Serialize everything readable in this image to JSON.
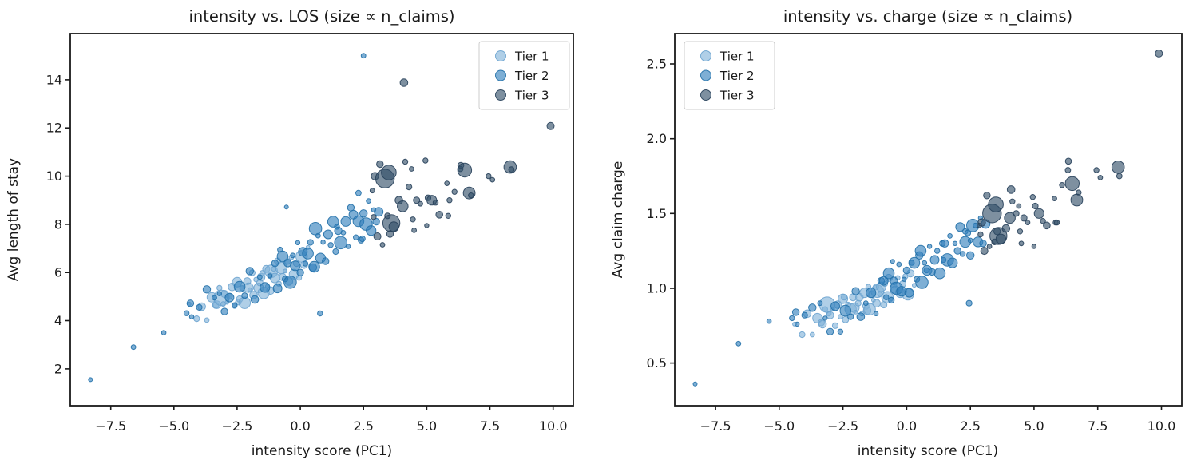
{
  "figure": {
    "background": "#ffffff",
    "frame_color": "#1a1a1a",
    "legend_border_color": "#cccccc",
    "legend_background": "#ffffff"
  },
  "chart_data": {
    "type": "scatter",
    "point_format": [
      "pc1",
      "avg_los",
      "avg_charge",
      "n_claims"
    ],
    "size_encoding": "size ∝ n_claims",
    "marker_style": {
      "fill_alpha": 0.62,
      "edge_alpha": 0.9
    },
    "charts": [
      {
        "title": "intensity vs. LOS (size ∝ n_claims)",
        "xlabel": "intensity score (PC1)",
        "ylabel": "Avg length of stay",
        "y_index": 1,
        "xlim": [
          -9.1,
          10.8
        ],
        "ylim": [
          0.47,
          15.92
        ],
        "xticks": [
          [
            -7.5,
            "−7.5"
          ],
          [
            -5.0,
            "−5.0"
          ],
          [
            -2.5,
            "−2.5"
          ],
          [
            0.0,
            "0.0"
          ],
          [
            2.5,
            "2.5"
          ],
          [
            5.0,
            "5.0"
          ],
          [
            7.5,
            "7.5"
          ],
          [
            10.0,
            "10.0"
          ]
        ],
        "yticks": [
          [
            2,
            "2"
          ],
          [
            4,
            "4"
          ],
          [
            6,
            "6"
          ],
          [
            8,
            "8"
          ],
          [
            10,
            "10"
          ],
          [
            12,
            "12"
          ],
          [
            14,
            "14"
          ]
        ],
        "legend_position": "upper right",
        "grid": false
      },
      {
        "title": "intensity vs. charge (size ∝ n_claims)",
        "xlabel": "intensity score (PC1)",
        "ylabel": "Avg claim charge",
        "y_index": 2,
        "xlim": [
          -9.1,
          10.8
        ],
        "ylim": [
          0.215,
          2.703
        ],
        "xticks": [
          [
            -7.5,
            "−7.5"
          ],
          [
            -5.0,
            "−5.0"
          ],
          [
            -2.5,
            "−2.5"
          ],
          [
            0.0,
            "0.0"
          ],
          [
            2.5,
            "2.5"
          ],
          [
            5.0,
            "5.0"
          ],
          [
            7.5,
            "7.5"
          ],
          [
            10.0,
            "10.0"
          ]
        ],
        "yticks": [
          [
            0.5,
            "0.5"
          ],
          [
            1.0,
            "1.0"
          ],
          [
            1.5,
            "1.5"
          ],
          [
            2.0,
            "2.0"
          ],
          [
            2.5,
            "2.5"
          ]
        ],
        "legend_position": "upper left",
        "grid": false
      }
    ],
    "series": [
      {
        "name": "Tier 1",
        "color": "#7fb2d8",
        "edge": "#6ba3cf",
        "points": [
          [
            -4.4,
            4.69,
            0.76,
            40
          ],
          [
            -4.1,
            4.08,
            0.69,
            90
          ],
          [
            -3.9,
            4.58,
            0.83,
            160
          ],
          [
            -3.7,
            4.02,
            0.69,
            60
          ],
          [
            -3.5,
            4.97,
            0.8,
            250
          ],
          [
            -3.35,
            4.64,
            0.77,
            110
          ],
          [
            -3.3,
            4.66,
            0.76,
            160
          ],
          [
            -3.2,
            5.36,
            0.86,
            70
          ],
          [
            -3.12,
            4.95,
            0.89,
            650
          ],
          [
            -3.05,
            4.69,
            0.83,
            60
          ],
          [
            -3.0,
            5.11,
            0.82,
            140
          ],
          [
            -2.9,
            4.76,
            0.86,
            40
          ],
          [
            -2.8,
            5.01,
            0.75,
            90
          ],
          [
            -2.7,
            5.4,
            0.89,
            160
          ],
          [
            -2.6,
            4.6,
            0.81,
            60
          ],
          [
            -2.5,
            5.6,
            0.93,
            250
          ],
          [
            -2.45,
            4.77,
            0.94,
            90
          ],
          [
            -2.4,
            4.9,
            0.79,
            110
          ],
          [
            -2.3,
            5.35,
            0.89,
            70
          ],
          [
            -2.2,
            4.74,
            0.86,
            360
          ],
          [
            -2.1,
            5.64,
            0.94,
            140
          ],
          [
            -2.05,
            5.37,
            0.87,
            250
          ],
          [
            -2.0,
            5.29,
            0.84,
            40
          ],
          [
            -1.9,
            5.99,
            0.9,
            90
          ],
          [
            -1.85,
            5.06,
            0.94,
            160
          ],
          [
            -1.75,
            5.71,
            0.83,
            60
          ],
          [
            -1.65,
            5.36,
            0.97,
            250
          ],
          [
            -1.6,
            5.58,
            0.88,
            110
          ],
          [
            -1.55,
            5.81,
            0.85,
            160
          ],
          [
            -1.5,
            5.98,
            1.01,
            70
          ],
          [
            -1.45,
            5.15,
            0.86,
            360
          ],
          [
            -1.35,
            6.15,
            0.96,
            140
          ],
          [
            -1.3,
            5.43,
            0.92,
            40
          ],
          [
            -1.2,
            5.87,
            1.01,
            90
          ],
          [
            -1.18,
            5.25,
            0.9,
            160
          ],
          [
            -1.15,
            6.05,
            0.98,
            430
          ],
          [
            -1.05,
            6.15,
            0.96,
            60
          ],
          [
            -1.0,
            5.77,
            1.01,
            250
          ],
          [
            -0.9,
            6.47,
            0.89,
            110
          ],
          [
            -0.85,
            5.54,
            1.03,
            70
          ],
          [
            -0.75,
            6.19,
            0.94,
            360
          ],
          [
            -0.7,
            5.81,
            1.07,
            140
          ],
          [
            -0.6,
            6.06,
            0.93,
            40
          ],
          [
            -0.5,
            6.46,
            1.02,
            90
          ],
          [
            -0.45,
            5.63,
            0.99,
            160
          ],
          [
            -0.35,
            6.63,
            1.07,
            60
          ],
          [
            -0.25,
            5.93,
            0.97,
            250
          ],
          [
            -0.15,
            6.38,
            1.03,
            110
          ],
          [
            -0.05,
            5.78,
            1.08,
            70
          ],
          [
            0.05,
            6.67,
            0.96,
            360
          ],
          [
            0.15,
            6.32,
            1.1,
            140
          ],
          [
            0.3,
            7.04,
            1.02,
            40
          ]
        ]
      },
      {
        "name": "Tier 2",
        "color": "#2e7ebc",
        "edge": "#2270a8",
        "points": [
          [
            -8.3,
            1.55,
            0.36,
            45
          ],
          [
            -6.6,
            2.9,
            0.63,
            60
          ],
          [
            -5.4,
            3.5,
            0.78,
            55
          ],
          [
            -4.5,
            4.31,
            0.8,
            70
          ],
          [
            -4.35,
            4.72,
            0.84,
            120
          ],
          [
            -4.3,
            4.16,
            0.76,
            50
          ],
          [
            -4.0,
            4.55,
            0.82,
            90
          ],
          [
            -3.7,
            5.3,
            0.87,
            150
          ],
          [
            -3.4,
            4.95,
            0.9,
            60
          ],
          [
            -3.2,
            5.12,
            0.8,
            50
          ],
          [
            -3.0,
            4.38,
            0.71,
            120
          ],
          [
            -2.8,
            4.96,
            0.88,
            210
          ],
          [
            -2.6,
            4.64,
            0.71,
            70
          ],
          [
            -2.4,
            5.41,
            0.85,
            320
          ],
          [
            -2.2,
            5.04,
            0.81,
            90
          ],
          [
            -2.0,
            6.06,
            0.98,
            150
          ],
          [
            -1.8,
            4.88,
            0.81,
            160
          ],
          [
            -1.6,
            5.81,
            0.9,
            60
          ],
          [
            -1.4,
            5.38,
            0.97,
            260
          ],
          [
            -1.2,
            5.86,
            0.83,
            50
          ],
          [
            -1.0,
            6.38,
            1.05,
            120
          ],
          [
            -0.9,
            5.34,
            1.05,
            210
          ],
          [
            -0.8,
            6.95,
            0.94,
            70
          ],
          [
            -0.7,
            6.67,
            1.1,
            320
          ],
          [
            -0.6,
            5.73,
            0.92,
            90
          ],
          [
            -0.55,
            8.72,
            1.18,
            45
          ],
          [
            -0.5,
            6.39,
            1.05,
            150
          ],
          [
            -0.4,
            5.6,
            1.0,
            420
          ],
          [
            -0.3,
            6.71,
            1.16,
            60
          ],
          [
            -0.2,
            6.28,
            0.98,
            260
          ],
          [
            -0.1,
            7.24,
            1.06,
            50
          ],
          [
            0.0,
            6.0,
            1.12,
            120
          ],
          [
            0.1,
            6.86,
            0.97,
            210
          ],
          [
            0.2,
            6.37,
            1.17,
            70
          ],
          [
            0.3,
            6.79,
            1.17,
            320
          ],
          [
            0.4,
            7.25,
            1.06,
            90
          ],
          [
            0.5,
            6.21,
            1.22,
            150
          ],
          [
            0.55,
            6.24,
            1.25,
            320
          ],
          [
            0.6,
            7.82,
            1.04,
            420
          ],
          [
            0.7,
            7.53,
            1.17,
            60
          ],
          [
            0.78,
            4.3,
            1.12,
            70
          ],
          [
            0.8,
            6.6,
            1.12,
            260
          ],
          [
            0.9,
            7.26,
            1.28,
            50
          ],
          [
            1.0,
            6.47,
            1.11,
            120
          ],
          [
            1.1,
            7.58,
            1.19,
            210
          ],
          [
            1.2,
            7.14,
            1.25,
            70
          ],
          [
            1.3,
            8.11,
            1.1,
            320
          ],
          [
            1.4,
            6.87,
            1.3,
            90
          ],
          [
            1.45,
            7.9,
            1.19,
            70
          ],
          [
            1.5,
            7.73,
            1.3,
            150
          ],
          [
            1.6,
            7.24,
            1.19,
            420
          ],
          [
            1.7,
            7.65,
            1.35,
            60
          ],
          [
            1.8,
            8.12,
            1.17,
            260
          ],
          [
            1.9,
            7.08,
            1.3,
            50
          ],
          [
            2.0,
            8.69,
            1.25,
            120
          ],
          [
            2.1,
            8.4,
            1.41,
            210
          ],
          [
            2.2,
            7.46,
            1.23,
            70
          ],
          [
            2.3,
            8.13,
            1.31,
            320
          ],
          [
            2.3,
            9.3,
            1.38,
            80
          ],
          [
            2.4,
            7.34,
            1.37,
            90
          ],
          [
            2.45,
            7.4,
            0.9,
            90
          ],
          [
            2.5,
            8.45,
            1.22,
            150
          ],
          [
            2.5,
            15.0,
            1.32,
            60
          ],
          [
            2.6,
            8.01,
            1.42,
            420
          ],
          [
            2.7,
            8.97,
            1.42,
            60
          ],
          [
            2.8,
            7.74,
            1.31,
            260
          ],
          [
            2.9,
            8.6,
            1.47,
            50
          ],
          [
            3.0,
            8.11,
            1.3,
            120
          ],
          [
            3.1,
            8.52,
            1.43,
            210
          ]
        ]
      },
      {
        "name": "Tier 3",
        "color": "#2f4c66",
        "edge": "#27405a",
        "points": [
          [
            2.85,
            9.4,
            1.42,
            60
          ],
          [
            2.9,
            8.3,
            1.36,
            70
          ],
          [
            2.95,
            10.0,
            1.44,
            150
          ],
          [
            3.05,
            7.5,
            1.25,
            140
          ],
          [
            3.15,
            10.5,
            1.62,
            120
          ],
          [
            3.25,
            7.15,
            1.28,
            60
          ],
          [
            3.35,
            9.9,
            1.5,
            950
          ],
          [
            3.45,
            8.35,
            1.31,
            90
          ],
          [
            3.5,
            10.15,
            1.56,
            600
          ],
          [
            3.55,
            7.6,
            1.38,
            120
          ],
          [
            3.6,
            8.05,
            1.35,
            800
          ],
          [
            3.7,
            7.9,
            1.33,
            260
          ],
          [
            3.9,
            9.0,
            1.4,
            160
          ],
          [
            4.05,
            8.75,
            1.47,
            320
          ],
          [
            4.1,
            13.88,
            1.66,
            160
          ],
          [
            4.15,
            10.6,
            1.58,
            70
          ],
          [
            4.3,
            9.55,
            1.5,
            90
          ],
          [
            4.4,
            10.3,
            1.55,
            60
          ],
          [
            4.45,
            8.2,
            1.38,
            70
          ],
          [
            4.5,
            7.75,
            1.3,
            60
          ],
          [
            4.6,
            9.0,
            1.47,
            110
          ],
          [
            4.75,
            8.85,
            1.44,
            60
          ],
          [
            4.95,
            10.65,
            1.61,
            70
          ],
          [
            5.0,
            7.95,
            1.28,
            50
          ],
          [
            5.05,
            9.1,
            1.55,
            90
          ],
          [
            5.2,
            9.0,
            1.5,
            260
          ],
          [
            5.35,
            8.9,
            1.45,
            70
          ],
          [
            5.5,
            8.4,
            1.42,
            130
          ],
          [
            5.8,
            9.7,
            1.6,
            60
          ],
          [
            5.85,
            8.35,
            1.44,
            70
          ],
          [
            5.9,
            9.0,
            1.44,
            70
          ],
          [
            6.1,
            9.35,
            1.69,
            70
          ],
          [
            6.33,
            10.3,
            1.79,
            80
          ],
          [
            6.35,
            10.45,
            1.85,
            100
          ],
          [
            6.5,
            10.25,
            1.7,
            520
          ],
          [
            6.68,
            9.3,
            1.59,
            380
          ],
          [
            6.75,
            9.2,
            1.64,
            70
          ],
          [
            7.45,
            10.0,
            1.79,
            70
          ],
          [
            7.6,
            9.85,
            1.74,
            60
          ],
          [
            8.3,
            10.38,
            1.81,
            420
          ],
          [
            8.35,
            10.28,
            1.75,
            80
          ],
          [
            9.9,
            12.08,
            2.57,
            140
          ]
        ]
      }
    ]
  }
}
